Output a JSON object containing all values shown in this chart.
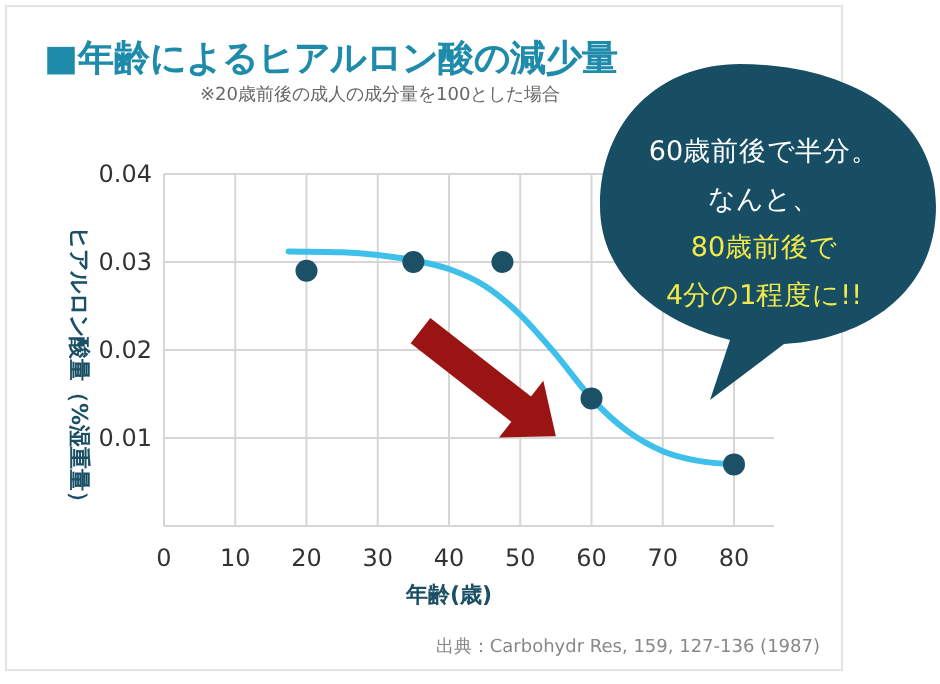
{
  "chart_data": {
    "type": "scatter",
    "title": "■年齢によるヒアルロン酸の減少量",
    "subtitle": "※20歳前後の成人の成分量を100とした場合",
    "xlabel": "年齢(歳)",
    "ylabel": "ヒアルロン酸量（%湿重量）",
    "xlim": [
      0,
      80
    ],
    "xticks": [
      0,
      10,
      20,
      30,
      40,
      50,
      60,
      70,
      80
    ],
    "ylim": [
      0,
      0.04
    ],
    "yticks": [
      {
        "value": 0,
        "label": null
      },
      0.01,
      0.02,
      0.03,
      0.04
    ],
    "grid": true,
    "marker": "none",
    "series": [
      {
        "type": "line",
        "color": "#3ec0ea",
        "x": [
          17.5,
          25,
          30,
          35,
          40,
          45,
          50,
          55,
          60,
          65,
          70,
          75,
          80
        ],
        "values": [
          0.0312,
          0.0311,
          0.0308,
          0.0302,
          0.0292,
          0.0273,
          0.024,
          0.0195,
          0.0145,
          0.0108,
          0.0085,
          0.0074,
          0.007
        ]
      },
      {
        "marker": "circle",
        "color": "#1b5066",
        "x": [
          20,
          35,
          47.5,
          60,
          80
        ],
        "values": [
          0.029,
          0.03,
          0.03,
          0.0145,
          0.007
        ]
      }
    ],
    "annotations": [
      "60歳前後で半分。",
      "なんと、",
      "80歳前後で",
      "4分の1程度に!!",
      "出典：Carbohydr Res, 159, 127-136 (1987)"
    ]
  }
}
